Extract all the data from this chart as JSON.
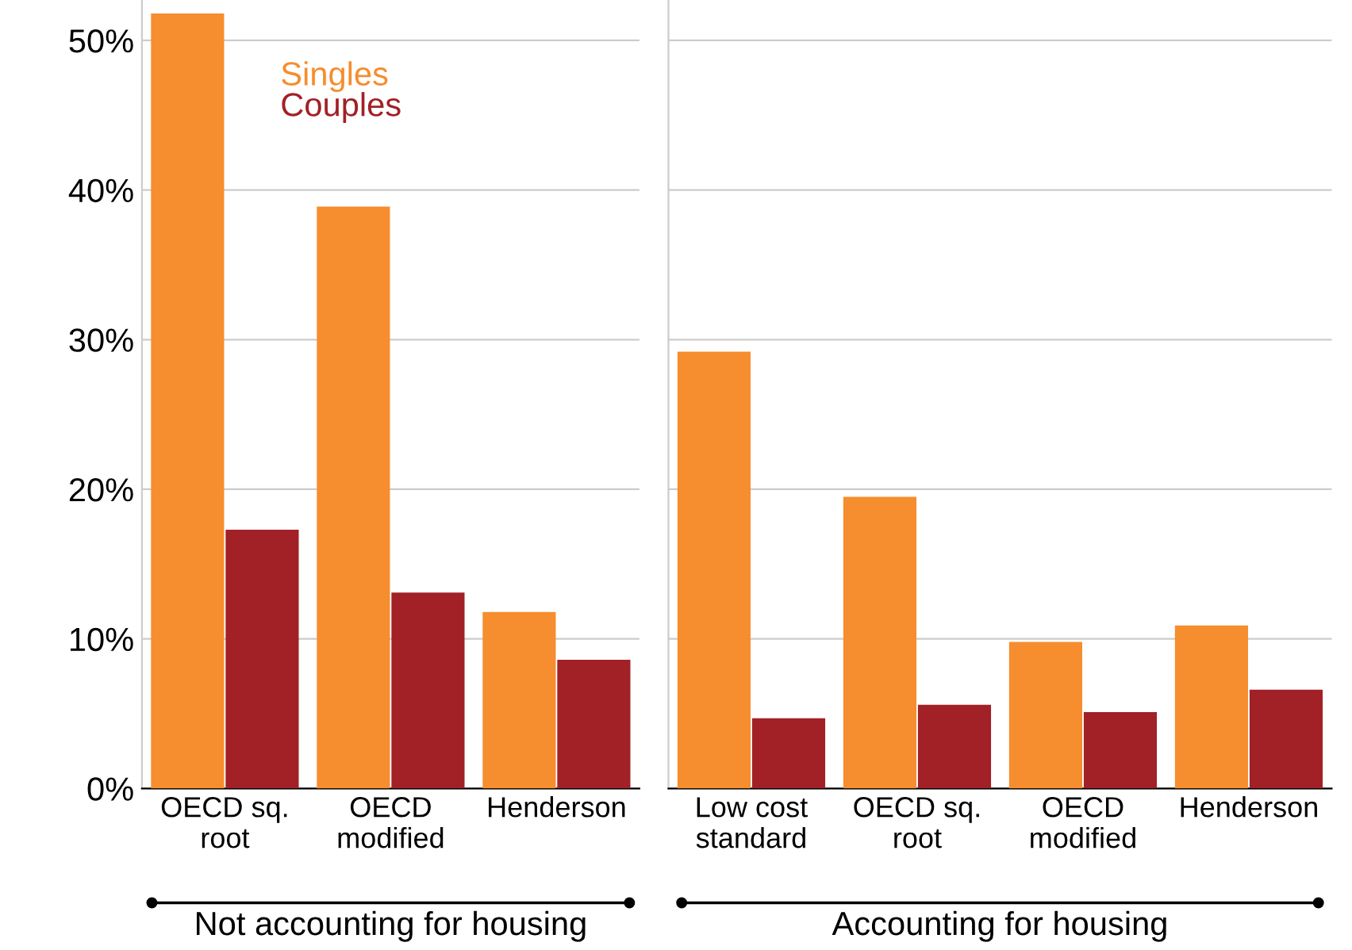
{
  "chart_data": [
    {
      "type": "bar",
      "categories": [
        "OECD sq.\nroot",
        "OECD\nmodified",
        "Henderson"
      ],
      "xlabel": "Not accounting for housing",
      "series": [
        {
          "name": "Singles",
          "color": "#f68d2e",
          "values": [
            51.8,
            38.9,
            11.8
          ]
        },
        {
          "name": "Couples",
          "color": "#a12126",
          "values": [
            17.3,
            13.1,
            8.6
          ]
        }
      ],
      "ylim": [
        0,
        52.7
      ],
      "yticks": [
        {
          "value": 0,
          "label": "0%"
        },
        {
          "value": 10,
          "label": "10%"
        },
        {
          "value": 20,
          "label": "20%"
        },
        {
          "value": 30,
          "label": "30%"
        },
        {
          "value": 40,
          "label": "40%"
        },
        {
          "value": 50,
          "label": "50%"
        }
      ],
      "grid": "y",
      "legend": "top"
    },
    {
      "type": "bar",
      "categories": [
        "Low cost\nstandard",
        "OECD sq.\nroot",
        "OECD\nmodified",
        "Henderson"
      ],
      "xlabel": "Accounting for housing",
      "series": [
        {
          "color": "#f68d2e",
          "values": [
            29.2,
            19.5,
            9.8,
            10.9
          ]
        },
        {
          "color": "#a12126",
          "values": [
            4.7,
            5.6,
            5.1,
            6.6
          ]
        }
      ],
      "ylim": [
        0,
        52.7
      ],
      "grid": "y",
      "tick_labels": "x"
    }
  ]
}
